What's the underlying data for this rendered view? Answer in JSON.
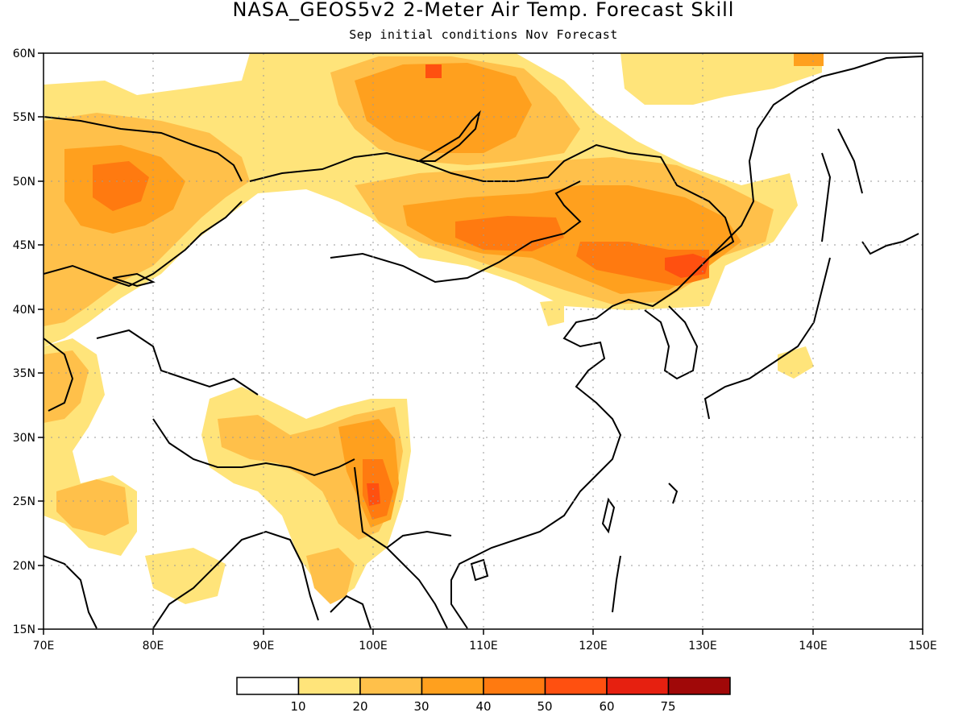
{
  "title": "NASA_GEOS5v2 2-Meter Air Temp. Forecast Skill",
  "subtitle": "Sep initial conditions  Nov Forecast",
  "map": {
    "lon_range": [
      70,
      150
    ],
    "lat_range": [
      15,
      60
    ],
    "lon_ticks": [
      "70E",
      "80E",
      "90E",
      "100E",
      "110E",
      "120E",
      "130E",
      "140E",
      "150E"
    ],
    "lat_ticks": [
      "15N",
      "20N",
      "25N",
      "30N",
      "35N",
      "40N",
      "45N",
      "50N",
      "55N",
      "60N"
    ],
    "grid": true
  },
  "legend": {
    "labels": [
      "10",
      "20",
      "30",
      "40",
      "50",
      "60",
      "75"
    ],
    "colors": [
      "#ffffff",
      "#ffe47a",
      "#ffc04a",
      "#ffa01e",
      "#ff7a10",
      "#ff5010",
      "#e62010",
      "#a00808"
    ]
  },
  "colors": {
    "c1": "#ffe47a",
    "c2": "#ffc04a",
    "c3": "#ffa01e",
    "c4": "#ff7a10",
    "c5": "#ff5010"
  }
}
